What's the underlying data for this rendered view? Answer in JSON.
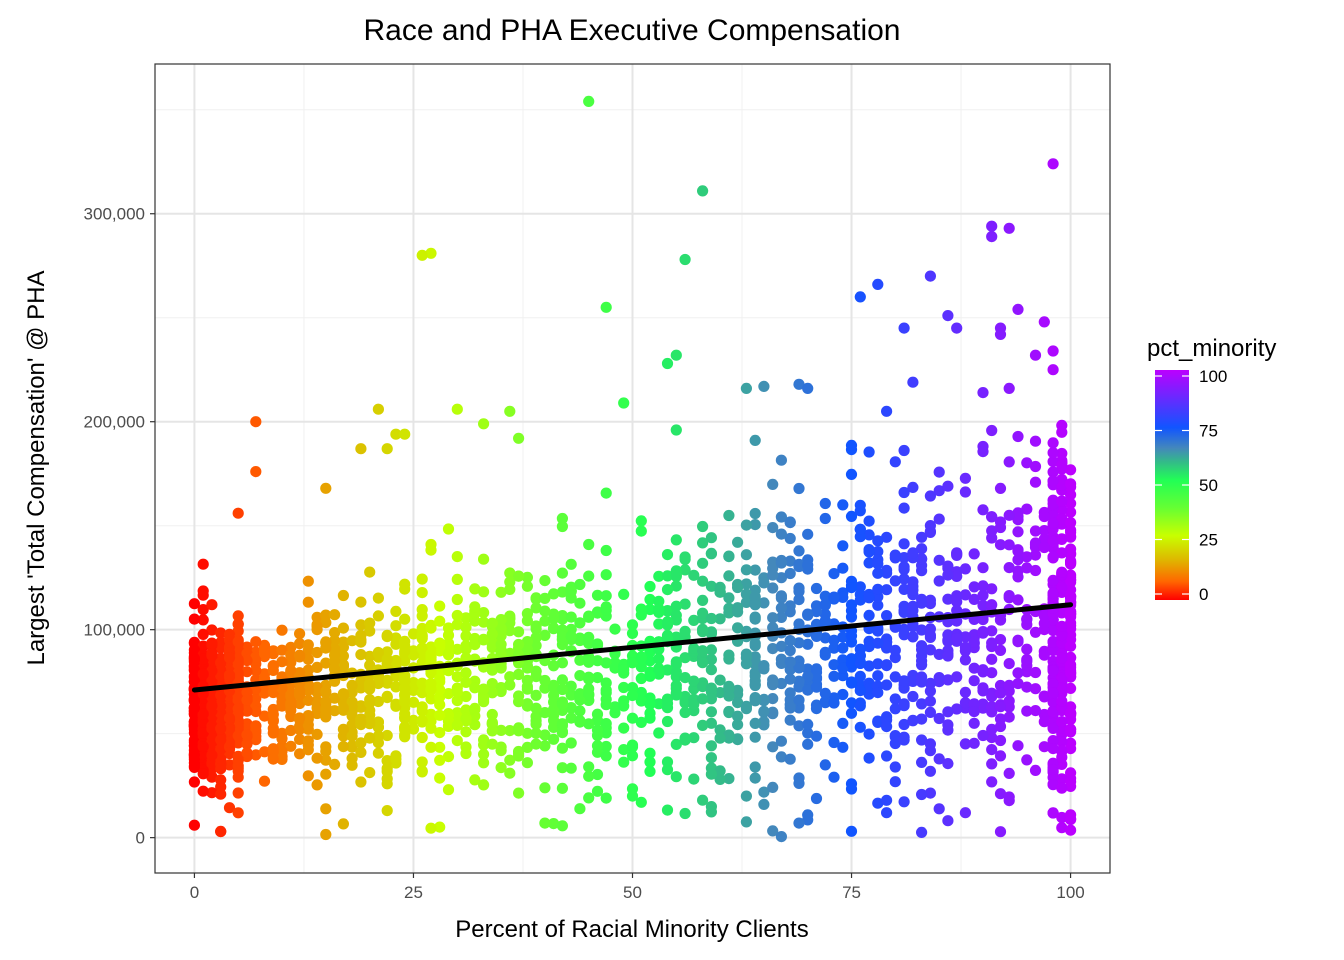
{
  "chart_data": {
    "type": "scatter",
    "title": "Race and PHA Executive Compensation",
    "xlabel": "Percent of Racial Minority Clients",
    "ylabel": "Largest 'Total Compensation' @ PHA",
    "xlim": [
      -4.5,
      104.5
    ],
    "ylim": [
      -17000,
      372000
    ],
    "x_ticks": [
      0,
      25,
      50,
      75,
      100
    ],
    "x_tick_labels": [
      "0",
      "25",
      "50",
      "75",
      "100"
    ],
    "y_ticks": [
      0,
      100000,
      200000,
      300000
    ],
    "y_tick_labels": [
      "0",
      "100,000",
      "200,000",
      "300,000"
    ],
    "grid": true,
    "legend": {
      "title": "pct_minority",
      "placement": "right",
      "breaks": [
        0,
        25,
        50,
        75,
        100
      ],
      "break_labels": [
        "0",
        "25",
        "50",
        "75",
        "100"
      ],
      "color_stops": [
        {
          "value": 0,
          "color": "#ff0000"
        },
        {
          "value": 8,
          "color": "#ff6600"
        },
        {
          "value": 18,
          "color": "#ddbb00"
        },
        {
          "value": 28,
          "color": "#c8ff00"
        },
        {
          "value": 40,
          "color": "#66ff33"
        },
        {
          "value": 52,
          "color": "#22ff55"
        },
        {
          "value": 60,
          "color": "#33bb88"
        },
        {
          "value": 66,
          "color": "#4488bb"
        },
        {
          "value": 75,
          "color": "#1155ff"
        },
        {
          "value": 85,
          "color": "#5533ff"
        },
        {
          "value": 100,
          "color": "#bb00ff"
        }
      ]
    },
    "trend_line": {
      "x": [
        0,
        100
      ],
      "y": [
        71000,
        112000
      ],
      "color": "#000000"
    },
    "highlighted_points": [
      {
        "x": 45,
        "y": 354000
      },
      {
        "x": 98,
        "y": 324000
      },
      {
        "x": 58,
        "y": 311000
      },
      {
        "x": 91,
        "y": 294000
      },
      {
        "x": 93,
        "y": 293000
      },
      {
        "x": 91,
        "y": 289000
      },
      {
        "x": 27,
        "y": 281000
      },
      {
        "x": 56,
        "y": 278000
      },
      {
        "x": 84,
        "y": 270000
      },
      {
        "x": 78,
        "y": 266000
      },
      {
        "x": 76,
        "y": 260000
      },
      {
        "x": 47,
        "y": 255000
      },
      {
        "x": 94,
        "y": 254000
      },
      {
        "x": 86,
        "y": 251000
      },
      {
        "x": 97,
        "y": 248000
      },
      {
        "x": 81,
        "y": 245000
      },
      {
        "x": 87,
        "y": 245000
      },
      {
        "x": 92,
        "y": 245000
      },
      {
        "x": 92,
        "y": 242000
      },
      {
        "x": 98,
        "y": 234000
      },
      {
        "x": 55,
        "y": 232000
      },
      {
        "x": 54,
        "y": 228000
      },
      {
        "x": 96,
        "y": 232000
      },
      {
        "x": 98,
        "y": 225000
      },
      {
        "x": 82,
        "y": 219000
      },
      {
        "x": 69,
        "y": 218000
      },
      {
        "x": 63,
        "y": 216000
      },
      {
        "x": 65,
        "y": 217000
      },
      {
        "x": 70,
        "y": 216000
      },
      {
        "x": 93,
        "y": 216000
      },
      {
        "x": 90,
        "y": 214000
      },
      {
        "x": 7,
        "y": 200000
      },
      {
        "x": 49,
        "y": 209000
      },
      {
        "x": 21,
        "y": 206000
      },
      {
        "x": 30,
        "y": 206000
      },
      {
        "x": 79,
        "y": 205000
      },
      {
        "x": 36,
        "y": 205000
      },
      {
        "x": 33,
        "y": 199000
      },
      {
        "x": 55,
        "y": 196000
      },
      {
        "x": 23,
        "y": 194000
      },
      {
        "x": 24,
        "y": 194000
      },
      {
        "x": 37,
        "y": 192000
      },
      {
        "x": 64,
        "y": 191000
      },
      {
        "x": 19,
        "y": 187000
      },
      {
        "x": 22,
        "y": 187000
      },
      {
        "x": 7,
        "y": 176000
      },
      {
        "x": 15,
        "y": 168000
      },
      {
        "x": 5,
        "y": 156000
      },
      {
        "x": 26,
        "y": 280000
      },
      {
        "x": 40,
        "y": 7000
      },
      {
        "x": 15,
        "y": 1500
      },
      {
        "x": 67,
        "y": 500
      },
      {
        "x": 83,
        "y": 2500
      },
      {
        "x": 69,
        "y": 7000
      },
      {
        "x": 79,
        "y": 12000
      },
      {
        "x": 88,
        "y": 12000
      },
      {
        "x": 3,
        "y": 3000
      },
      {
        "x": 0,
        "y": 6000
      },
      {
        "x": 100,
        "y": 9000
      },
      {
        "x": 100,
        "y": 11000
      },
      {
        "x": 22,
        "y": 13000
      },
      {
        "x": 65,
        "y": 16000
      },
      {
        "x": 47,
        "y": 19000
      },
      {
        "x": 63,
        "y": 20000
      },
      {
        "x": 51,
        "y": 17000
      }
    ]
  }
}
